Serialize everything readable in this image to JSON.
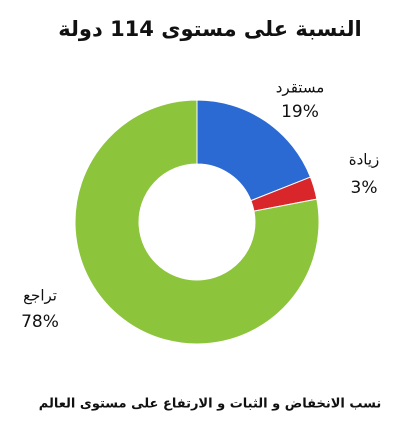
{
  "chart_data": {
    "type": "donut",
    "title": "النسبة على مستوى 114 دولة",
    "categories": [
      "مستقرد",
      "زيادة",
      "تراجع"
    ],
    "values": [
      19,
      3,
      78
    ],
    "value_labels": [
      "19%",
      "3%",
      "78%"
    ],
    "colors": [
      "#2a6ad2",
      "#d8262b",
      "#8cc43c"
    ],
    "caption": "نسب الانخفاض و الثبات و الارتفاع على مستوى العالم"
  }
}
